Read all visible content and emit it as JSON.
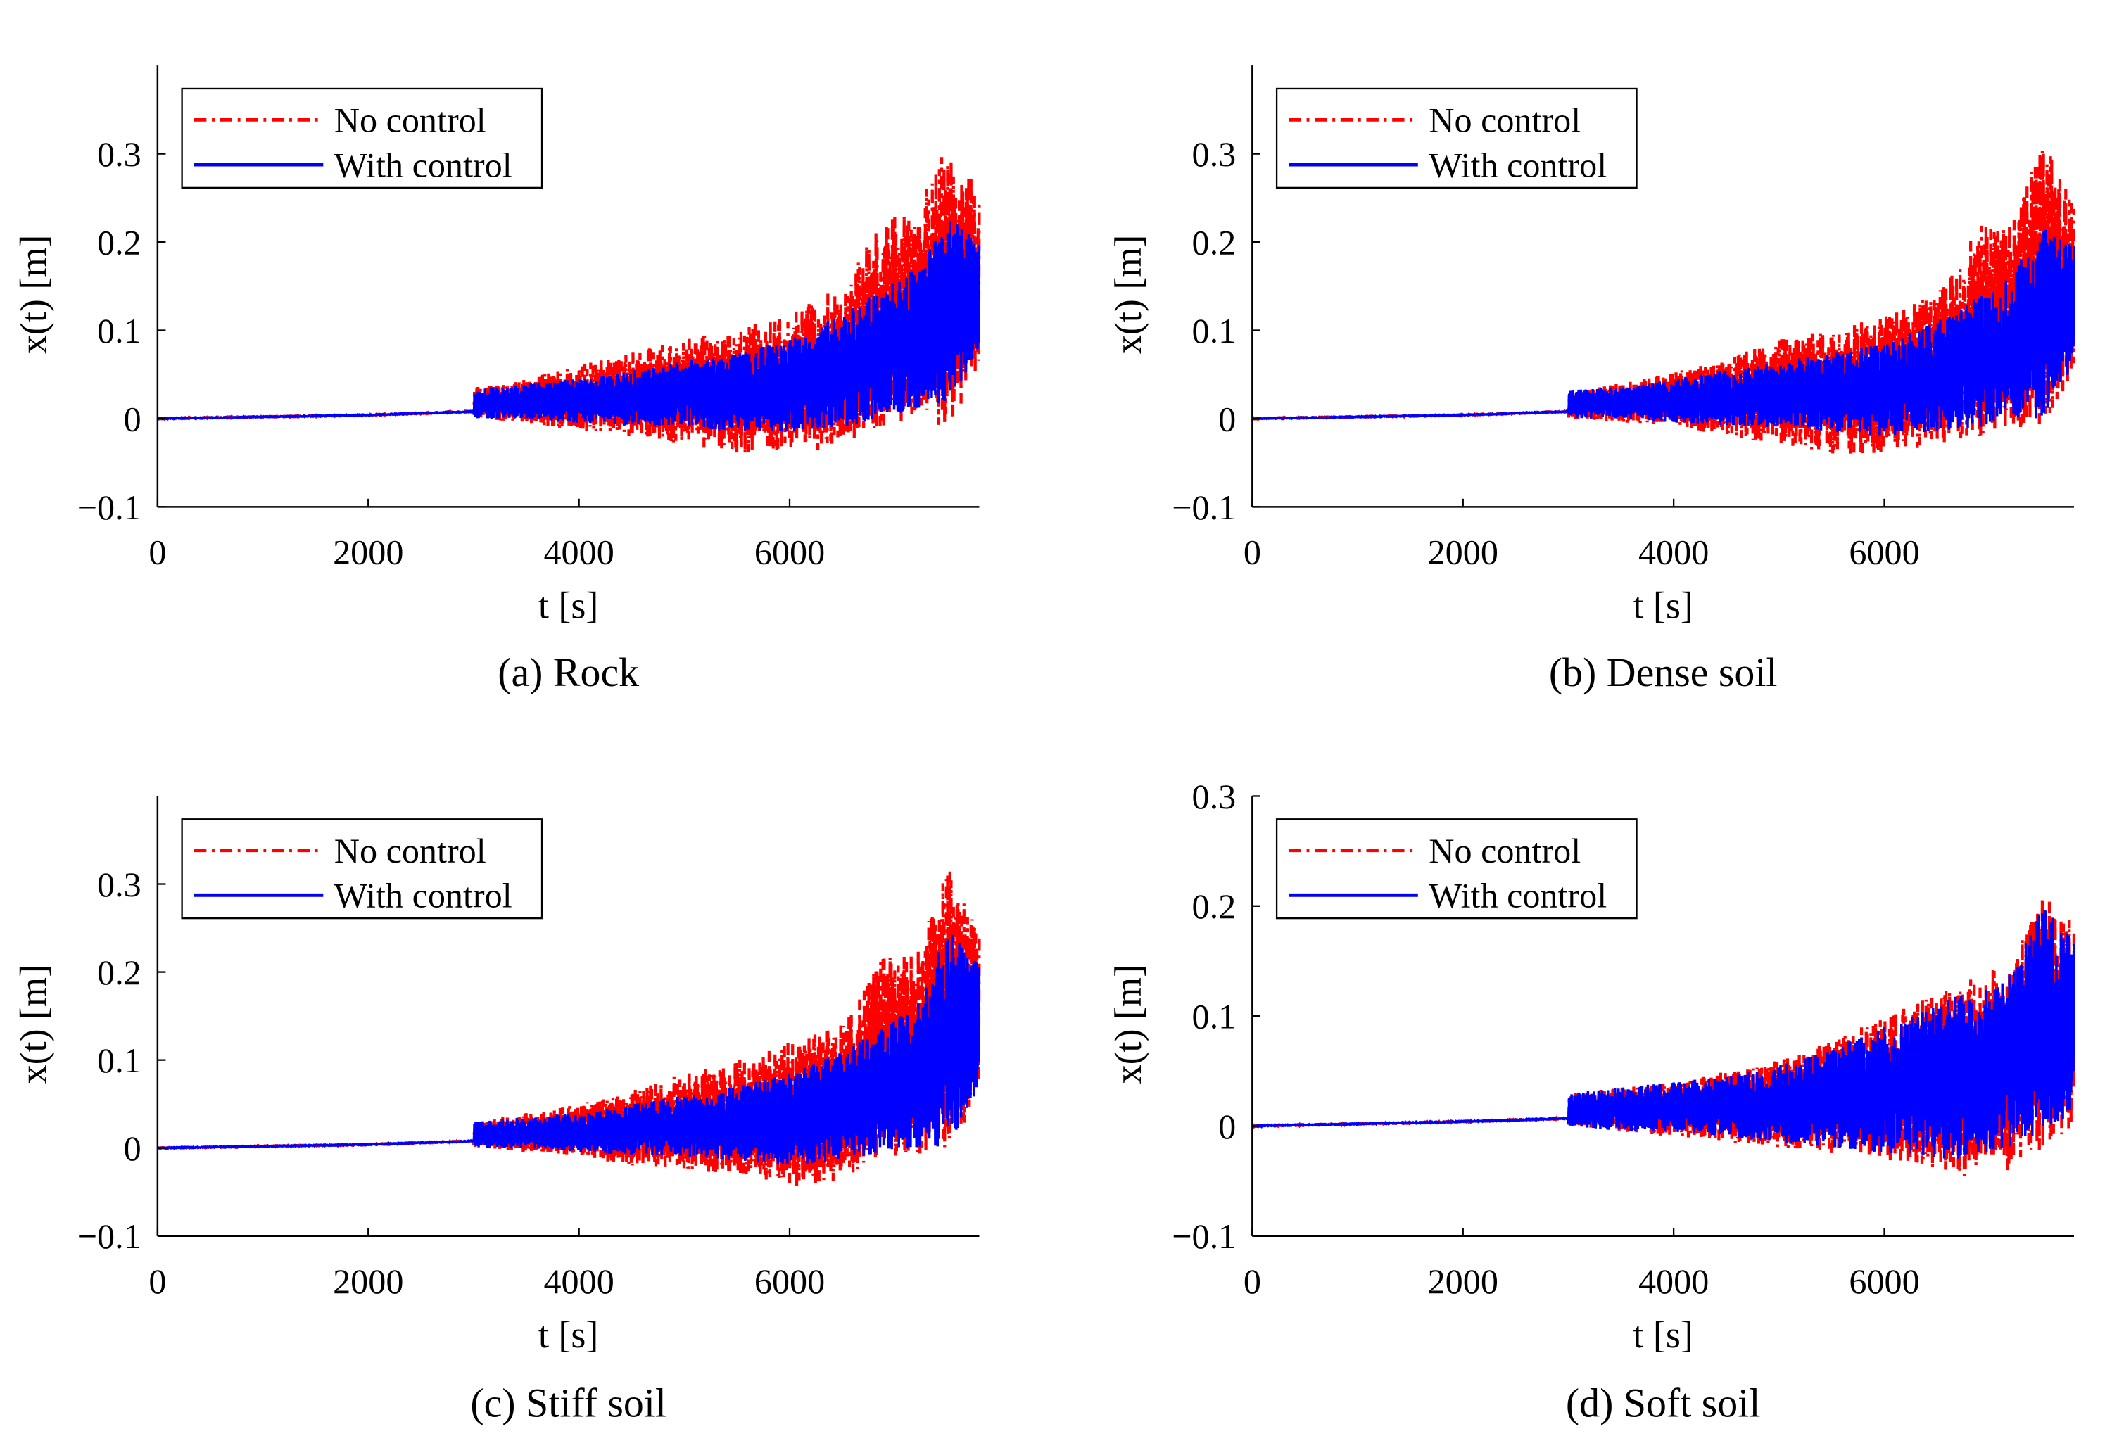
{
  "legend_labels": [
    "No control",
    "With control"
  ],
  "chart_data": [
    {
      "type": "line",
      "caption": "(a) Rock",
      "xlabel": "t [s]",
      "ylabel": "x(t) [m]",
      "xlim": [
        0,
        7800
      ],
      "ylim": [
        -0.1,
        0.4
      ],
      "xticks": [
        0,
        2000,
        4000,
        6000
      ],
      "yticks": [
        -0.1,
        0,
        0.1,
        0.2,
        0.3
      ],
      "xtick_labels": [
        "0",
        "2000",
        "4000",
        "6000"
      ],
      "ytick_labels": [
        "−0.1",
        "0",
        "0.1",
        "0.2",
        "0.3"
      ],
      "legend": "top-left",
      "grid": false,
      "series": [
        {
          "name": "No control",
          "color": "#ff0000",
          "style": "dash-dot",
          "x": [
            0,
            1000,
            2000,
            2999,
            3000,
            3500,
            4000,
            4500,
            5000,
            5500,
            6000,
            6500,
            6900,
            7200,
            7500,
            7800
          ],
          "upper": [
            0.0,
            0.002,
            0.004,
            0.008,
            0.035,
            0.045,
            0.06,
            0.075,
            0.09,
            0.1,
            0.12,
            0.15,
            0.23,
            0.24,
            0.31,
            0.26
          ],
          "lower": [
            0.0,
            0.002,
            0.004,
            0.008,
            0.0,
            -0.005,
            -0.015,
            -0.02,
            -0.03,
            -0.04,
            -0.04,
            -0.035,
            -0.01,
            -0.005,
            -0.01,
            0.05
          ]
        },
        {
          "name": "With control",
          "color": "#0000ff",
          "style": "solid",
          "x": [
            0,
            1000,
            2000,
            2999,
            3000,
            3500,
            4000,
            4500,
            5000,
            5500,
            6000,
            6500,
            6900,
            7200,
            7500,
            7800
          ],
          "upper": [
            0.0,
            0.002,
            0.004,
            0.008,
            0.035,
            0.04,
            0.045,
            0.055,
            0.065,
            0.075,
            0.09,
            0.12,
            0.15,
            0.17,
            0.23,
            0.2
          ],
          "lower": [
            0.0,
            0.002,
            0.004,
            0.008,
            0.0,
            0.0,
            -0.005,
            -0.008,
            -0.01,
            -0.015,
            -0.015,
            -0.01,
            0.0,
            0.01,
            0.02,
            0.07
          ]
        }
      ]
    },
    {
      "type": "line",
      "caption": "(b) Dense soil",
      "xlabel": "t [s]",
      "ylabel": "x(t) [m]",
      "xlim": [
        0,
        7800
      ],
      "ylim": [
        -0.1,
        0.4
      ],
      "xticks": [
        0,
        2000,
        4000,
        6000
      ],
      "yticks": [
        -0.1,
        0,
        0.1,
        0.2,
        0.3
      ],
      "xtick_labels": [
        "0",
        "2000",
        "4000",
        "6000"
      ],
      "ytick_labels": [
        "−0.1",
        "0",
        "0.1",
        "0.2",
        "0.3"
      ],
      "legend": "top-left",
      "grid": false,
      "series": [
        {
          "name": "No control",
          "color": "#ff0000",
          "style": "dash-dot",
          "x": [
            0,
            1000,
            2000,
            2999,
            3000,
            3500,
            4000,
            4500,
            5000,
            5500,
            6000,
            6500,
            6900,
            7200,
            7500,
            7800
          ],
          "upper": [
            0.0,
            0.002,
            0.004,
            0.008,
            0.03,
            0.04,
            0.055,
            0.07,
            0.09,
            0.1,
            0.12,
            0.14,
            0.22,
            0.22,
            0.32,
            0.25
          ],
          "lower": [
            0.0,
            0.002,
            0.004,
            0.008,
            0.0,
            -0.005,
            -0.01,
            -0.02,
            -0.03,
            -0.04,
            -0.04,
            -0.03,
            -0.02,
            -0.01,
            -0.01,
            0.04
          ]
        },
        {
          "name": "With control",
          "color": "#0000ff",
          "style": "solid",
          "x": [
            0,
            1000,
            2000,
            2999,
            3000,
            3500,
            4000,
            4500,
            5000,
            5500,
            6000,
            6500,
            6900,
            7200,
            7500,
            7800
          ],
          "upper": [
            0.0,
            0.002,
            0.004,
            0.008,
            0.035,
            0.035,
            0.045,
            0.055,
            0.065,
            0.075,
            0.085,
            0.11,
            0.14,
            0.16,
            0.22,
            0.2
          ],
          "lower": [
            0.0,
            0.002,
            0.004,
            0.008,
            0.0,
            0.0,
            -0.005,
            -0.008,
            -0.01,
            -0.015,
            -0.02,
            -0.015,
            -0.01,
            0.0,
            0.0,
            0.06
          ]
        }
      ]
    },
    {
      "type": "line",
      "caption": "(c) Stiff soil",
      "xlabel": "t [s]",
      "ylabel": "x(t) [m]",
      "xlim": [
        0,
        7800
      ],
      "ylim": [
        -0.1,
        0.4
      ],
      "xticks": [
        0,
        2000,
        4000,
        6000
      ],
      "yticks": [
        -0.1,
        0,
        0.1,
        0.2,
        0.3
      ],
      "xtick_labels": [
        "0",
        "2000",
        "4000",
        "6000"
      ],
      "ytick_labels": [
        "−0.1",
        "0",
        "0.1",
        "0.2",
        "0.3"
      ],
      "legend": "top-left",
      "grid": false,
      "series": [
        {
          "name": "No control",
          "color": "#ff0000",
          "style": "dash-dot",
          "x": [
            0,
            1000,
            2000,
            2999,
            3000,
            3500,
            4000,
            4500,
            5000,
            5500,
            6000,
            6500,
            6900,
            7200,
            7500,
            7800
          ],
          "upper": [
            0.0,
            0.002,
            0.004,
            0.008,
            0.03,
            0.04,
            0.05,
            0.065,
            0.085,
            0.1,
            0.12,
            0.14,
            0.22,
            0.22,
            0.32,
            0.25
          ],
          "lower": [
            0.0,
            0.002,
            0.004,
            0.008,
            0.0,
            -0.005,
            -0.01,
            -0.02,
            -0.025,
            -0.03,
            -0.045,
            -0.04,
            -0.01,
            -0.01,
            0.0,
            0.05
          ]
        },
        {
          "name": "With control",
          "color": "#0000ff",
          "style": "solid",
          "x": [
            0,
            1000,
            2000,
            2999,
            3000,
            3500,
            4000,
            4500,
            5000,
            5500,
            6000,
            6500,
            6900,
            7200,
            7500,
            7800
          ],
          "upper": [
            0.0,
            0.002,
            0.004,
            0.008,
            0.03,
            0.035,
            0.04,
            0.05,
            0.06,
            0.07,
            0.085,
            0.11,
            0.14,
            0.16,
            0.25,
            0.21
          ],
          "lower": [
            0.0,
            0.002,
            0.004,
            0.008,
            0.0,
            0.0,
            -0.005,
            -0.008,
            -0.01,
            -0.015,
            -0.02,
            -0.015,
            -0.005,
            0.0,
            0.0,
            0.07
          ]
        }
      ]
    },
    {
      "type": "line",
      "caption": "(d) Soft soil",
      "xlabel": "t [s]",
      "ylabel": "x(t) [m]",
      "xlim": [
        0,
        7800
      ],
      "ylim": [
        -0.1,
        0.3
      ],
      "xticks": [
        0,
        2000,
        4000,
        6000
      ],
      "yticks": [
        -0.1,
        0,
        0.1,
        0.2,
        0.3
      ],
      "xtick_labels": [
        "0",
        "2000",
        "4000",
        "6000"
      ],
      "ytick_labels": [
        "−0.1",
        "0",
        "0.1",
        "0.2",
        "0.3"
      ],
      "legend": "top-left",
      "grid": false,
      "series": [
        {
          "name": "No control",
          "color": "#ff0000",
          "style": "dash-dot",
          "x": [
            0,
            1000,
            2000,
            2999,
            3000,
            3500,
            4000,
            4500,
            5000,
            5500,
            6000,
            6500,
            6900,
            7200,
            7500,
            7800
          ],
          "upper": [
            0.0,
            0.002,
            0.004,
            0.007,
            0.03,
            0.035,
            0.04,
            0.05,
            0.06,
            0.08,
            0.1,
            0.12,
            0.14,
            0.15,
            0.21,
            0.19
          ],
          "lower": [
            0.0,
            0.002,
            0.004,
            0.007,
            0.0,
            -0.005,
            -0.01,
            -0.015,
            -0.02,
            -0.025,
            -0.03,
            -0.04,
            -0.05,
            -0.04,
            -0.02,
            0.0
          ]
        },
        {
          "name": "With control",
          "color": "#0000ff",
          "style": "solid",
          "x": [
            0,
            1000,
            2000,
            2999,
            3000,
            3500,
            4000,
            4500,
            5000,
            5500,
            6000,
            6500,
            6900,
            7200,
            7500,
            7800
          ],
          "upper": [
            0.0,
            0.002,
            0.004,
            0.007,
            0.03,
            0.035,
            0.04,
            0.045,
            0.055,
            0.07,
            0.09,
            0.11,
            0.13,
            0.14,
            0.2,
            0.17
          ],
          "lower": [
            0.0,
            0.002,
            0.004,
            0.007,
            0.0,
            -0.005,
            -0.005,
            -0.01,
            -0.015,
            -0.02,
            -0.025,
            -0.03,
            -0.03,
            -0.02,
            -0.01,
            0.01
          ]
        }
      ]
    }
  ]
}
